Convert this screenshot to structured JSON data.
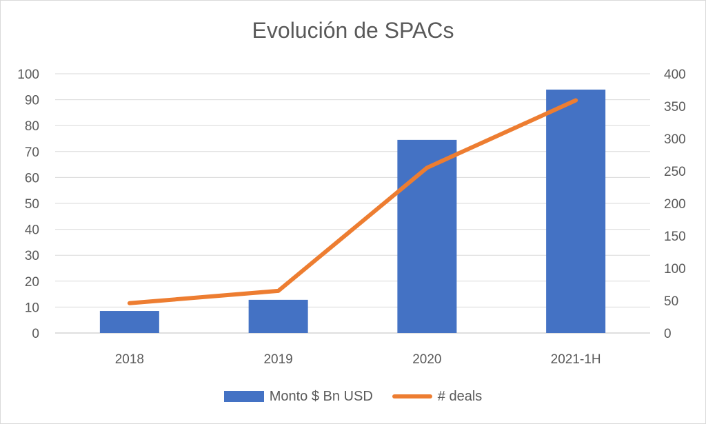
{
  "chart_data": {
    "type": "bar",
    "title": "Evolución de SPACs",
    "categories": [
      "2018",
      "2019",
      "2020",
      "2021-1H"
    ],
    "series": [
      {
        "name": "Monto $ Bn USD",
        "type": "bar",
        "axis": "left",
        "values": [
          8.5,
          12.8,
          74.5,
          93.9
        ]
      },
      {
        "name": "# deals",
        "type": "line",
        "axis": "right",
        "values": [
          46,
          65,
          255,
          359
        ]
      }
    ],
    "y_left": {
      "ylim": [
        0,
        100
      ],
      "ticks": [
        "0",
        "10",
        "20",
        "30",
        "40",
        "50",
        "60",
        "70",
        "80",
        "90",
        "100"
      ]
    },
    "y_right": {
      "ylim": [
        0,
        400
      ],
      "ticks": [
        "0",
        "50",
        "100",
        "150",
        "200",
        "250",
        "300",
        "350",
        "400"
      ]
    },
    "grid": true,
    "legend": "bottom",
    "colors": {
      "bar": "#4472c4",
      "line": "#ed7d31",
      "grid": "#d9d9d9",
      "text": "#595959"
    }
  }
}
